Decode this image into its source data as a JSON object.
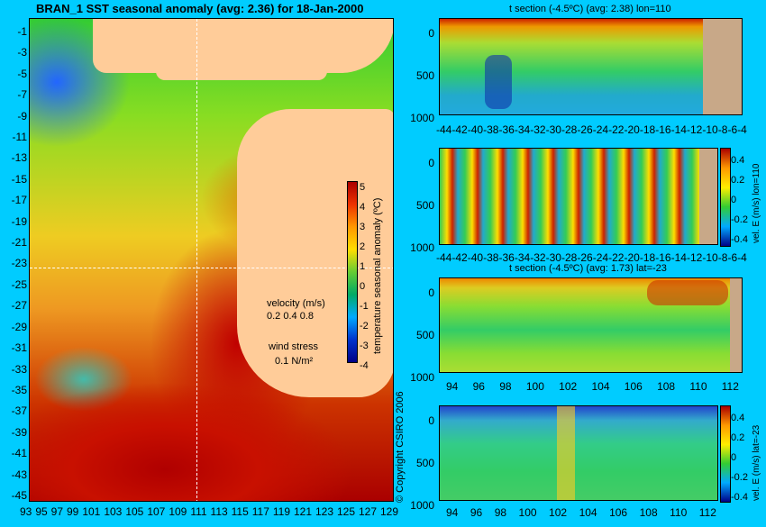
{
  "map": {
    "title": "BRAN_1 SST seasonal anomaly (avg: 2.36) for 18-Jan-2000",
    "lat_ticks": [
      "-1",
      "-3",
      "-5",
      "-7",
      "-9",
      "-11",
      "-13",
      "-15",
      "-17",
      "-19",
      "-21",
      "-23",
      "-25",
      "-27",
      "-29",
      "-31",
      "-33",
      "-35",
      "-37",
      "-39",
      "-41",
      "-43",
      "-45"
    ],
    "lon_ticks": [
      "93",
      "95",
      "97",
      "99",
      "101",
      "103",
      "105",
      "107",
      "109",
      "111",
      "113",
      "115",
      "117",
      "119",
      "121",
      "123",
      "125",
      "127",
      "129"
    ],
    "colorbar_ticks": [
      "5",
      "4",
      "3",
      "2",
      "1",
      "0",
      "-1",
      "-2",
      "-3",
      "-4"
    ],
    "colorbar_label": "temperature seasonal anomaly (ºC)",
    "velocity_label": "velocity (m/s)",
    "velocity_scale": "0.2 0.4 0.8",
    "wind_label": "wind stress",
    "wind_scale": "0.1 N/m²",
    "copyright": "© Copyright CSIRO 2006"
  },
  "panels": {
    "p1": {
      "title": "t section (-4.5ºC) (avg: 2.38) lon=110",
      "y_ticks": [
        "0",
        "500",
        "1000"
      ],
      "x_ticks": [
        "-44",
        "-42",
        "-40",
        "-38",
        "-36",
        "-34",
        "-32",
        "-30",
        "-28",
        "-26",
        "-24",
        "-22",
        "-20",
        "-18",
        "-16",
        "-14",
        "-12",
        "-10",
        "-8",
        "-6",
        "-4"
      ]
    },
    "p2": {
      "y_ticks": [
        "0",
        "500",
        "1000"
      ],
      "x_ticks": [
        "-44",
        "-42",
        "-40",
        "-38",
        "-36",
        "-34",
        "-32",
        "-30",
        "-28",
        "-26",
        "-24",
        "-22",
        "-20",
        "-18",
        "-16",
        "-14",
        "-12",
        "-10",
        "-8",
        "-6",
        "-4"
      ],
      "cb_ticks": [
        "0.4",
        "0.2",
        "0",
        "-0.2",
        "-0.4"
      ],
      "cb_label": "vel. E (m/s) lon=110"
    },
    "p3": {
      "title": "t section (-4.5ºC) (avg: 1.73) lat=-23",
      "y_ticks": [
        "0",
        "500",
        "1000"
      ],
      "x_ticks": [
        "94",
        "96",
        "98",
        "100",
        "102",
        "104",
        "106",
        "108",
        "110",
        "112"
      ]
    },
    "p4": {
      "y_ticks": [
        "0",
        "500",
        "1000"
      ],
      "x_ticks": [
        "94",
        "96",
        "98",
        "100",
        "102",
        "104",
        "106",
        "108",
        "110",
        "112"
      ],
      "cb_ticks": [
        "0.4",
        "0.2",
        "0",
        "-0.2",
        "-0.4"
      ],
      "cb_label": "vel. E (m/s) lat=-23"
    }
  },
  "colors": {
    "background": "#00ccff",
    "land": "#ffcc99",
    "hot": "#aa0000"
  }
}
